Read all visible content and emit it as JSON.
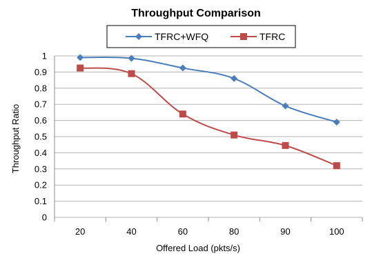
{
  "chart_data": {
    "type": "line",
    "title": "Throughput Comparison",
    "xlabel": "Offered Load (pkts/s)",
    "ylabel": "Throughput  Ratio",
    "categories": [
      "20",
      "40",
      "60",
      "80",
      "90",
      "100"
    ],
    "ylim": [
      0,
      1
    ],
    "yticks": [
      "0",
      "0.1",
      "0.2",
      "0.3",
      "0.4",
      "0.5",
      "0.6",
      "0.7",
      "0.8",
      "0.9",
      "1"
    ],
    "grid": true,
    "legend_position": "top",
    "series": [
      {
        "name": "TFRC+WFQ",
        "values": [
          0.99,
          0.985,
          0.925,
          0.86,
          0.69,
          0.59
        ],
        "color": "#4A7EBB",
        "marker": "diamond"
      },
      {
        "name": "TFRC",
        "values": [
          0.925,
          0.89,
          0.64,
          0.51,
          0.445,
          0.32
        ],
        "color": "#BE4B48",
        "marker": "square"
      }
    ]
  }
}
